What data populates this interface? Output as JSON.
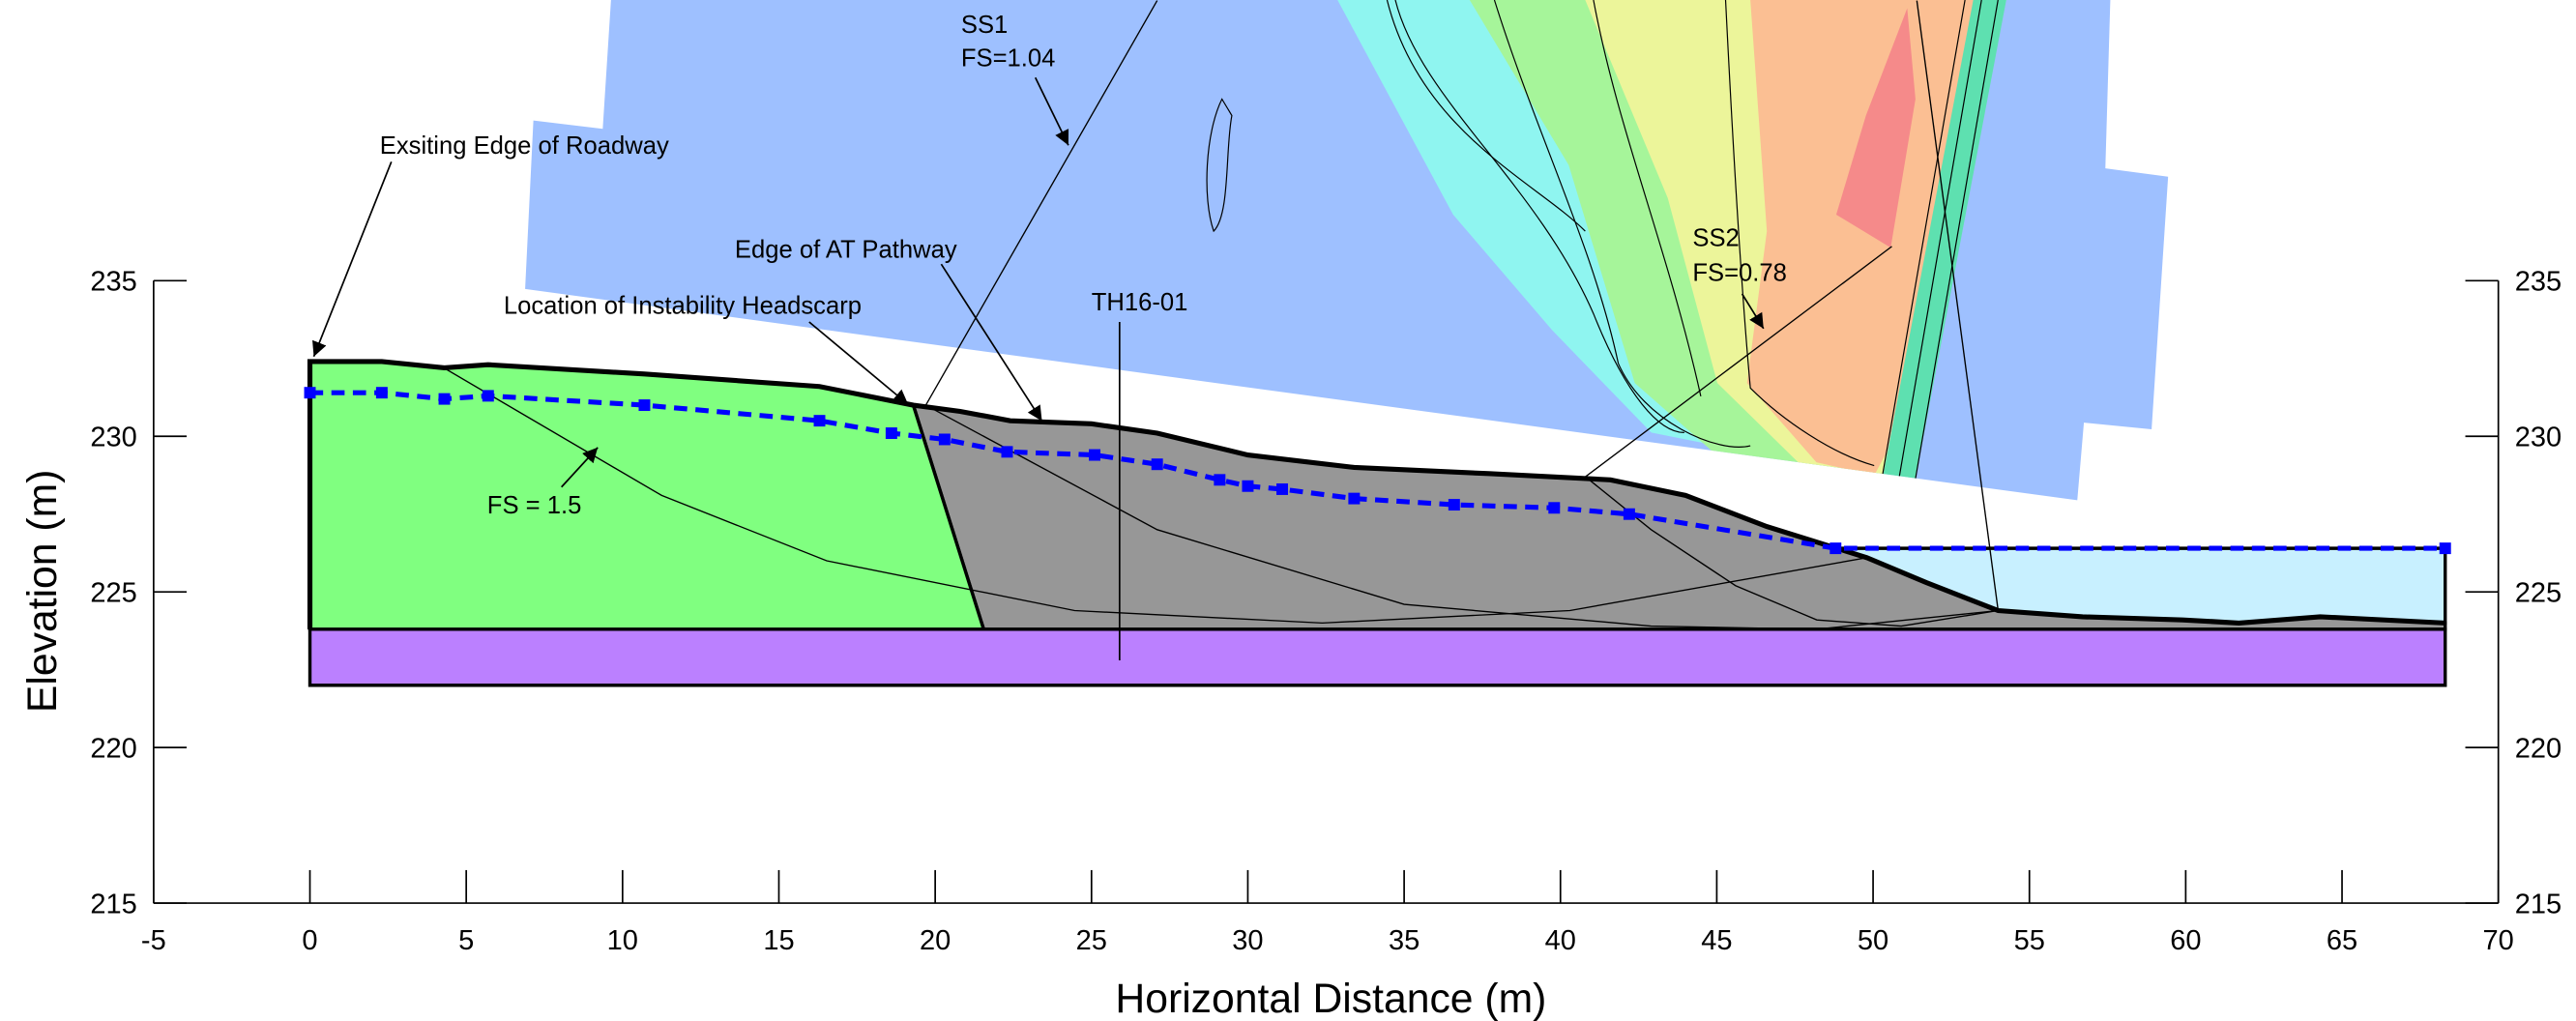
{
  "chart_data": {
    "type": "line",
    "x_label": "Horizontal Distance (m)",
    "y_label": "Elevation (m)",
    "xlim": [
      -5,
      70
    ],
    "xticks": [
      -5,
      0,
      5,
      10,
      15,
      20,
      25,
      30,
      35,
      40,
      45,
      50,
      55,
      60,
      65,
      70
    ],
    "ylim": [
      215,
      235
    ],
    "yticks": [
      215,
      220,
      225,
      230,
      235
    ],
    "annotations": [
      "Exsiting Edge of Roadway",
      "Edge of AT Pathway",
      "Location of Instability Headscarp",
      "TH16-01",
      "SS1",
      "FS=1.04",
      "SS2",
      "FS=0.78",
      "FS = 1.5"
    ],
    "series": [
      {
        "kind": "fill",
        "color": "#c8f0ff",
        "x": [
          48.8,
          68.3,
          68.3,
          48.8
        ],
        "y": [
          226.4,
          226.4,
          224.0,
          224.0
        ]
      },
      {
        "kind": "fill",
        "color": "#979797",
        "x": [
          19.3,
          20.8,
          22.4,
          25.0,
          27.1,
          30.0,
          33.4,
          37.7,
          41.6,
          44.0,
          46.6,
          49.8,
          51.7,
          54.0,
          56.7,
          59.9,
          61.7,
          64.3,
          68.3,
          68.3,
          21.55
        ],
        "y": [
          231.0,
          230.8,
          230.5,
          230.4,
          230.1,
          229.4,
          229.0,
          228.8,
          228.6,
          228.1,
          227.1,
          226.1,
          225.3,
          224.4,
          224.2,
          224.1,
          224.0,
          224.2,
          224.0,
          223.8,
          223.8
        ]
      },
      {
        "kind": "fill",
        "color": "#80ff80",
        "x": [
          0,
          2.3,
          4.3,
          5.7,
          10.7,
          16.3,
          19.3,
          21.55,
          0
        ],
        "y": [
          232.4,
          232.4,
          232.2,
          232.3,
          232.0,
          231.6,
          231.0,
          223.8,
          223.8
        ]
      },
      {
        "kind": "fill",
        "color": "#bb80ff",
        "x": [
          0,
          68.3,
          68.3,
          0
        ],
        "y": [
          223.8,
          223.8,
          222.0,
          222.0
        ]
      },
      {
        "kind": "thick",
        "color": "#000000",
        "x": [
          0,
          0,
          2.3,
          4.3,
          5.7,
          10.7,
          16.3,
          19.3,
          20.8,
          22.4,
          25.0,
          27.1,
          30.0,
          33.4,
          37.7,
          41.6,
          44.0,
          46.6,
          49.8,
          51.7,
          54.0,
          56.7,
          59.9,
          61.7,
          64.3,
          68.3
        ],
        "y": [
          223.8,
          232.4,
          232.4,
          232.2,
          232.3,
          232.0,
          231.6,
          231.0,
          230.8,
          230.5,
          230.4,
          230.1,
          229.4,
          229.0,
          228.8,
          228.6,
          228.1,
          227.1,
          226.1,
          225.3,
          224.4,
          224.2,
          224.1,
          224.0,
          224.2,
          224.0
        ]
      },
      {
        "kind": "thin",
        "color": "#000000",
        "x": [
          4.28,
          11.25,
          16.53,
          24.46,
          32.38,
          40.3,
          49.8
        ],
        "y": [
          232.2,
          228.1,
          226.0,
          224.4,
          224.0,
          224.4,
          226.1
        ]
      },
      {
        "kind": "thin",
        "color": "#000000",
        "x": [
          19.7,
          27.1,
          35.0,
          42.9,
          48.2,
          54.0
        ],
        "y": [
          231.0,
          227.0,
          224.6,
          223.9,
          223.8,
          224.4
        ]
      },
      {
        "kind": "thin",
        "color": "#000000",
        "x": [
          19.7,
          27.1
        ],
        "y": [
          231.0,
          244.0
        ]
      },
      {
        "kind": "thin",
        "color": "#000000",
        "x": [
          40.8,
          42.9,
          45.6,
          48.2,
          50.9,
          54.0
        ],
        "y": [
          228.7,
          227.0,
          225.2,
          224.1,
          223.9,
          224.4
        ]
      },
      {
        "kind": "thin",
        "color": "#000000",
        "x": [
          40.8,
          50.6
        ],
        "y": [
          228.7,
          236.1
        ]
      },
      {
        "kind": "thin",
        "color": "#000000",
        "x": [
          51.4,
          54.0
        ],
        "y": [
          244.0,
          224.4
        ]
      },
      {
        "kind": "dashed",
        "color": "#0000ff",
        "x": [
          0,
          2.3,
          4.3,
          5.7,
          10.7,
          16.3,
          18.6,
          20.3,
          22.3,
          25.1,
          27.1,
          29.1,
          30.0,
          31.1,
          33.4,
          36.6,
          39.8,
          42.2,
          48.8,
          68.3
        ],
        "y": [
          231.4,
          231.4,
          231.2,
          231.3,
          231.0,
          230.5,
          230.1,
          229.9,
          229.5,
          229.4,
          229.1,
          228.6,
          228.4,
          228.3,
          228.0,
          227.8,
          227.7,
          227.5,
          226.4,
          226.4
        ]
      }
    ]
  }
}
